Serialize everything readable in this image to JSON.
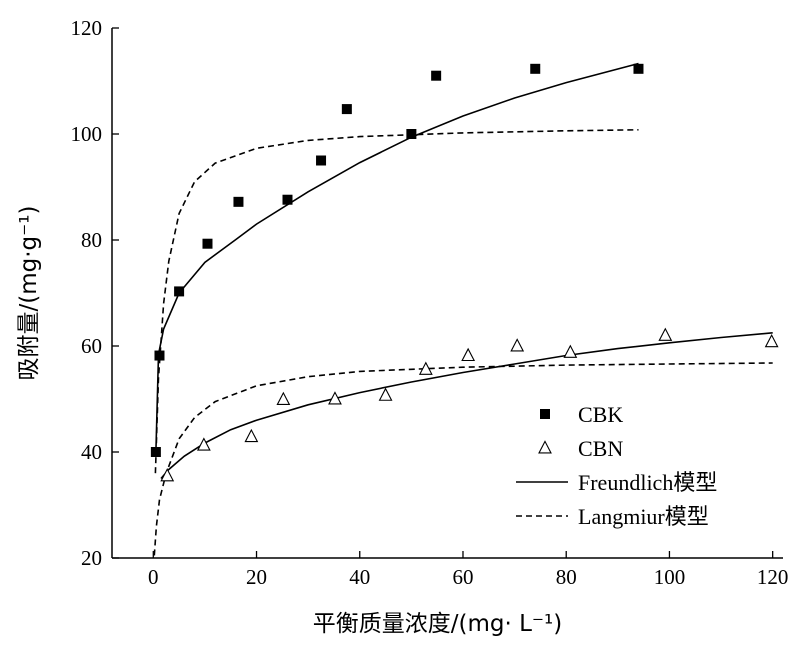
{
  "chart_data": {
    "type": "scatter",
    "xlabel": "平衡质量浓度/(mg· L⁻¹)",
    "ylabel": "吸附量/(mg·g⁻¹)",
    "xlim": [
      -8,
      122
    ],
    "ylim": [
      20,
      120
    ],
    "x_ticks": [
      0,
      20,
      40,
      60,
      80,
      100,
      120
    ],
    "y_ticks": [
      20,
      40,
      60,
      80,
      100,
      120
    ],
    "legend_position": "center-right",
    "series": [
      {
        "name": "CBK",
        "marker": "filled-square",
        "points": [
          [
            0.5,
            40
          ],
          [
            1.2,
            58.2
          ],
          [
            5.0,
            70.3
          ],
          [
            10.5,
            79.3
          ],
          [
            16.5,
            87.2
          ],
          [
            26.0,
            87.6
          ],
          [
            32.5,
            95.0
          ],
          [
            37.5,
            104.7
          ],
          [
            50.0,
            100.0
          ],
          [
            54.8,
            111.0
          ],
          [
            74.0,
            112.3
          ],
          [
            94.0,
            112.3
          ]
        ]
      },
      {
        "name": "CBN",
        "marker": "open-triangle",
        "points": [
          [
            2.7,
            35.5
          ],
          [
            9.8,
            41.3
          ],
          [
            19.0,
            42.9
          ],
          [
            25.2,
            49.9
          ],
          [
            35.2,
            50.0
          ],
          [
            45.0,
            50.7
          ],
          [
            52.8,
            55.6
          ],
          [
            61.0,
            58.2
          ],
          [
            70.5,
            60.0
          ],
          [
            80.8,
            58.8
          ],
          [
            99.2,
            62.0
          ],
          [
            119.8,
            60.8
          ]
        ]
      },
      {
        "name": "Freundlich模型",
        "line_style": "solid",
        "fits": [
          {
            "of": "CBK",
            "points": [
              [
                0.5,
                40.0
              ],
              [
                1,
                58.4
              ],
              [
                2,
                63.2
              ],
              [
                5,
                70.0
              ],
              [
                10,
                75.8
              ],
              [
                16,
                80.1
              ],
              [
                20,
                83.0
              ],
              [
                30,
                89.1
              ],
              [
                40,
                94.6
              ],
              [
                50,
                99.4
              ],
              [
                60,
                103.4
              ],
              [
                70,
                106.8
              ],
              [
                80,
                109.7
              ],
              [
                94,
                113.3
              ]
            ]
          },
          {
            "of": "CBN",
            "points": [
              [
                1.5,
                35.0
              ],
              [
                3,
                36.7
              ],
              [
                6,
                39.2
              ],
              [
                10,
                41.7
              ],
              [
                15,
                44.2
              ],
              [
                20,
                46.0
              ],
              [
                30,
                48.9
              ],
              [
                40,
                51.2
              ],
              [
                50,
                53.2
              ],
              [
                60,
                55.0
              ],
              [
                70,
                56.6
              ],
              [
                80,
                58.2
              ],
              [
                90,
                59.5
              ],
              [
                100,
                60.6
              ],
              [
                110,
                61.6
              ],
              [
                120,
                62.5
              ]
            ]
          }
        ]
      },
      {
        "name": "Langmiur模型",
        "line_style": "dashed",
        "fits": [
          {
            "of": "CBK",
            "points": [
              [
                0.4,
                36.0
              ],
              [
                1,
                54.0
              ],
              [
                2,
                68.0
              ],
              [
                3,
                76.0
              ],
              [
                5,
                85.0
              ],
              [
                8,
                91.0
              ],
              [
                12,
                94.5
              ],
              [
                20,
                97.3
              ],
              [
                30,
                98.8
              ],
              [
                40,
                99.5
              ],
              [
                60,
                100.2
              ],
              [
                80,
                100.6
              ],
              [
                94,
                100.8
              ]
            ]
          },
          {
            "of": "CBN",
            "points": [
              [
                0.2,
                20.5
              ],
              [
                0.6,
                26.0
              ],
              [
                1.2,
                31.0
              ],
              [
                2.5,
                36.0
              ],
              [
                5,
                42.5
              ],
              [
                8,
                46.5
              ],
              [
                12,
                49.5
              ],
              [
                20,
                52.5
              ],
              [
                30,
                54.2
              ],
              [
                40,
                55.2
              ],
              [
                60,
                56.0
              ],
              [
                80,
                56.4
              ],
              [
                100,
                56.6
              ],
              [
                120,
                56.8
              ]
            ]
          }
        ]
      }
    ]
  }
}
